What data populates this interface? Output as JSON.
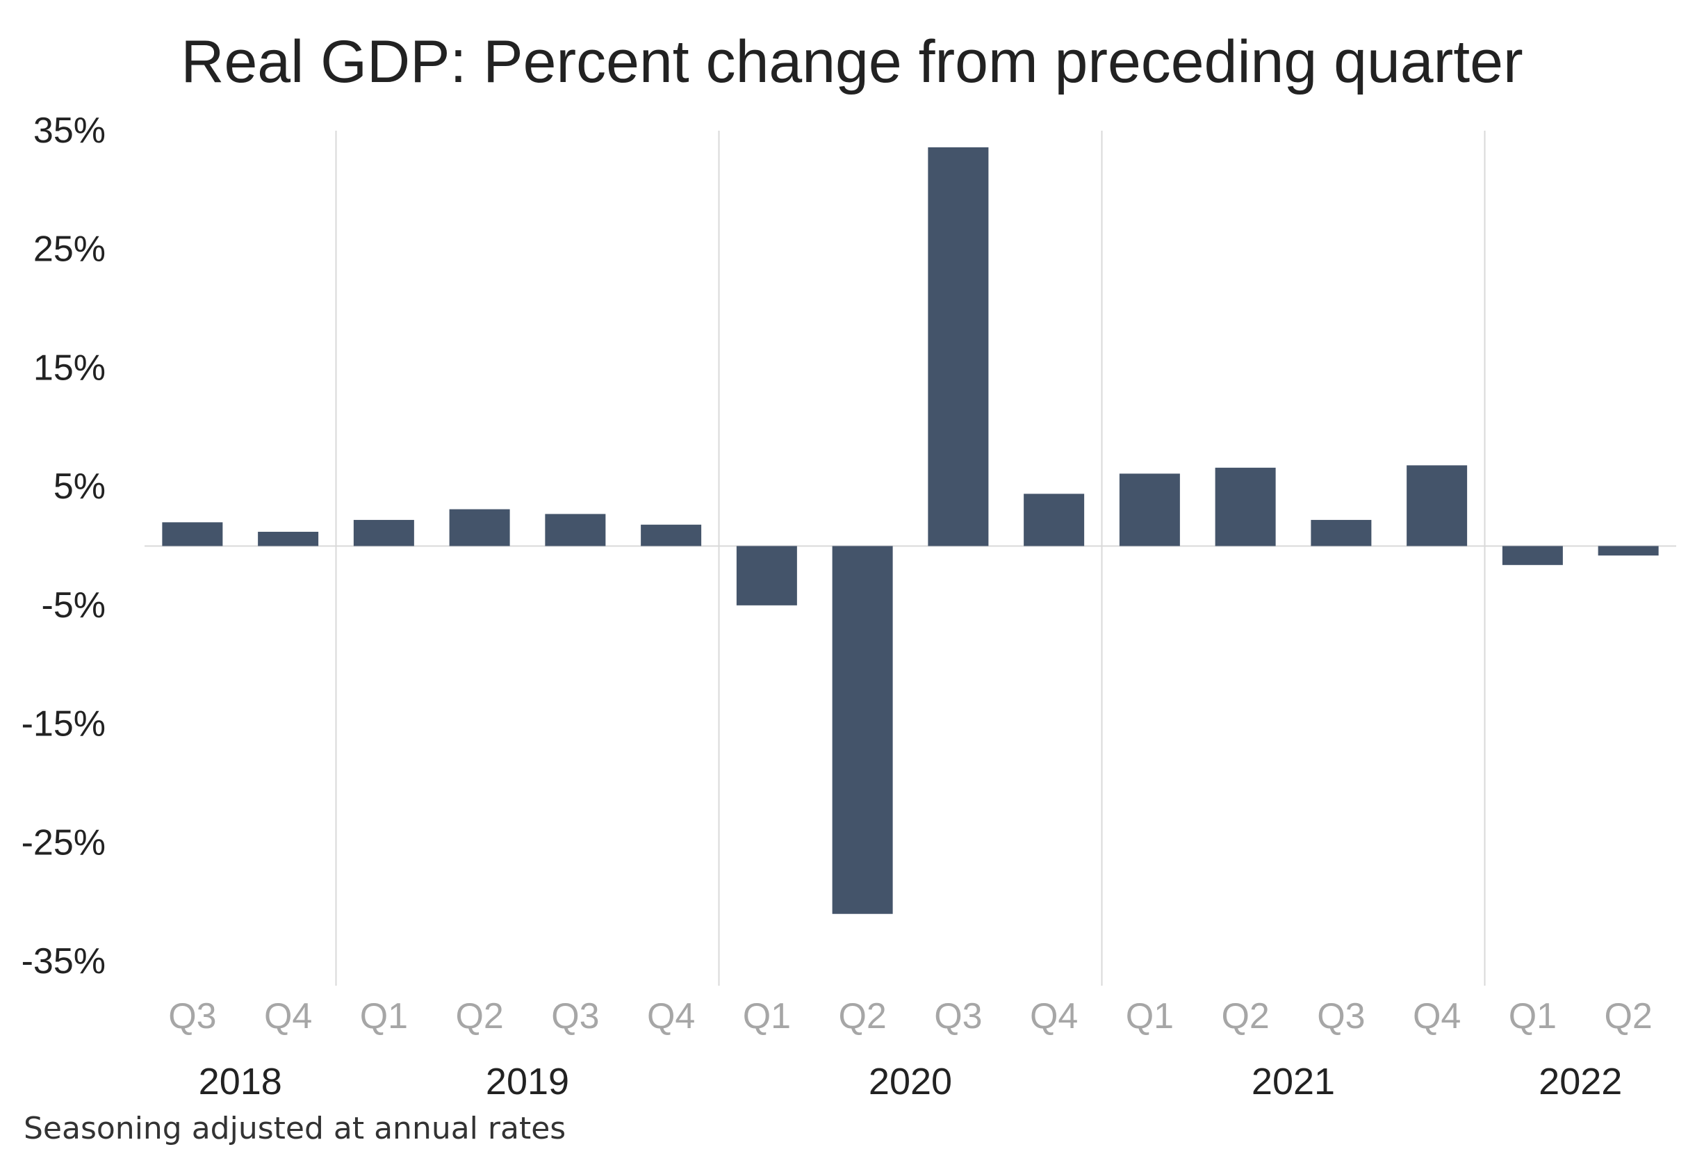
{
  "chart_data": {
    "type": "bar",
    "title": "Real GDP: Percent change from preceding quarter",
    "footnote": "Seasoning adjusted at annual rates",
    "xlabel": "",
    "ylabel": "",
    "ylim": [
      -35,
      35
    ],
    "yticks": [
      35,
      25,
      15,
      5,
      -5,
      -15,
      -25,
      -35
    ],
    "ytick_labels": [
      "35%",
      "25%",
      "15%",
      "5%",
      "-5%",
      "-15%",
      "-25%",
      "-35%"
    ],
    "categories": [
      "Q3",
      "Q4",
      "Q1",
      "Q2",
      "Q3",
      "Q4",
      "Q1",
      "Q2",
      "Q3",
      "Q4",
      "Q1",
      "Q2",
      "Q3",
      "Q4",
      "Q1",
      "Q2"
    ],
    "years": [
      {
        "label": "2018",
        "from": 0,
        "to": 1
      },
      {
        "label": "2019",
        "from": 2,
        "to": 5
      },
      {
        "label": "2020",
        "from": 6,
        "to": 9
      },
      {
        "label": "2021",
        "from": 10,
        "to": 13
      },
      {
        "label": "2022",
        "from": 14,
        "to": 15
      }
    ],
    "values": [
      2.0,
      1.2,
      2.2,
      3.1,
      2.7,
      1.8,
      -5.0,
      -31.0,
      33.6,
      4.4,
      6.1,
      6.6,
      2.2,
      6.8,
      -1.6,
      -0.8
    ],
    "grid": "vertical separators between years",
    "legend": "none",
    "colors": {
      "bar": "#44546A",
      "tick_label": "#222222",
      "quarter_label": "#A6A6A6",
      "year_label": "#222222",
      "separator": "#D9D9D9",
      "zero_line": "#D9D9D9"
    }
  }
}
